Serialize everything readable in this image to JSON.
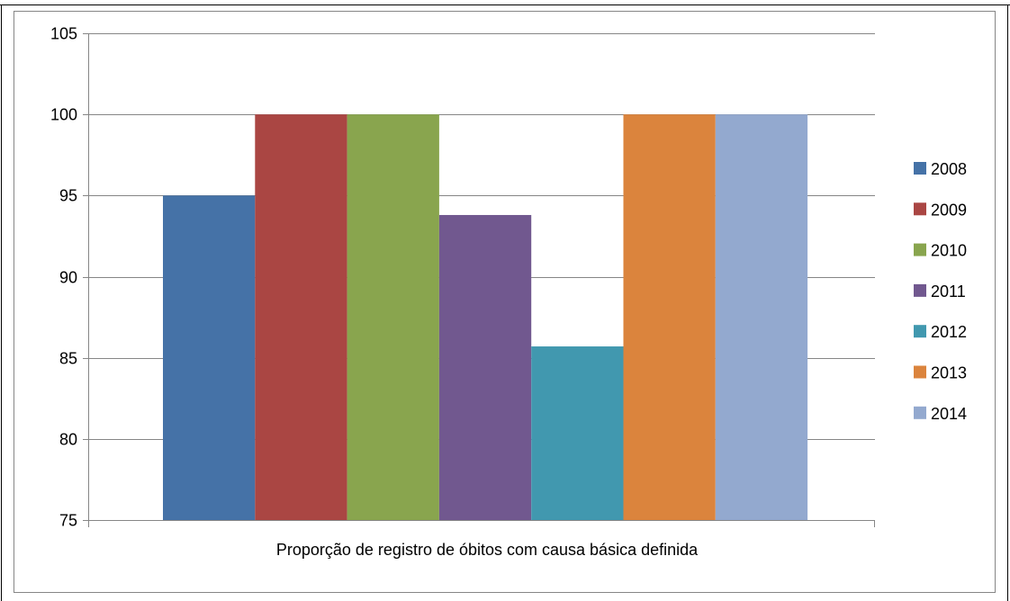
{
  "chart_data": {
    "type": "bar",
    "title": "",
    "xlabel": "Proporção de registro de óbitos com causa básica definida",
    "ylabel": "",
    "ylim": [
      75,
      105
    ],
    "yticks": [
      75,
      80,
      85,
      90,
      95,
      100,
      105
    ],
    "ytick_labels": [
      "75",
      "80",
      "85",
      "90",
      "95",
      "100",
      "105"
    ],
    "grid": true,
    "legend_position": "right",
    "categories": [
      "Proporção de registro de óbitos com causa básica definida"
    ],
    "series": [
      {
        "name": "2008",
        "values": [
          95.0
        ],
        "color": "#4572A7"
      },
      {
        "name": "2009",
        "values": [
          100.0
        ],
        "color": "#AA4643"
      },
      {
        "name": "2010",
        "values": [
          100.0
        ],
        "color": "#89A54E"
      },
      {
        "name": "2011",
        "values": [
          93.8
        ],
        "color": "#71588F"
      },
      {
        "name": "2012",
        "values": [
          85.7
        ],
        "color": "#4198AF"
      },
      {
        "name": "2013",
        "values": [
          100.0
        ],
        "color": "#DB843D"
      },
      {
        "name": "2014",
        "values": [
          100.0
        ],
        "color": "#93A9CF"
      }
    ]
  }
}
